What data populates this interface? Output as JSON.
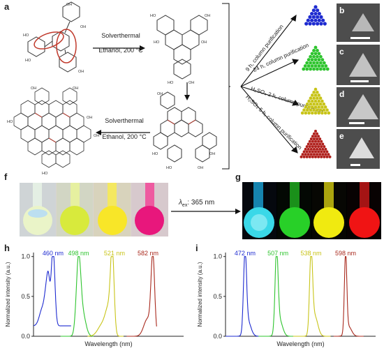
{
  "panel_labels": {
    "a": "a",
    "b": "b",
    "c": "c",
    "d": "d",
    "e": "e",
    "f": "f",
    "g": "g",
    "h": "h",
    "i": "i"
  },
  "reaction": {
    "step1": {
      "line1": "Solverthermal",
      "line2": "Ethanol, 200 °C"
    },
    "step2": {
      "line1": "Solverthermal",
      "line2": "Ethanol, 200 °C"
    },
    "conditions": [
      {
        "text": "9 h, column purification",
        "color": "#2a2ad6"
      },
      {
        "text": "24 h, column purification",
        "color": "#22c422"
      },
      {
        "text": "H₂SO₄ 2 h, column purification",
        "color": "#d8d820"
      },
      {
        "text": "H₂SO₄ 5 h, column purification",
        "color": "#e02020"
      }
    ],
    "oh_label": "OH",
    "ho_label": "HO"
  },
  "excitation": {
    "symbol": "λ",
    "subscript": "ex",
    "value": ": 365 nm"
  },
  "colors": {
    "blue": "#1e2bd0",
    "green": "#2ec42e",
    "yellow": "#c8c418",
    "red": "#b0201c"
  },
  "chart_data": [
    {
      "type": "line",
      "panel": "h",
      "xlabel": "Wavelength (nm)",
      "ylabel": "Normalized intensity (a.u.)",
      "ylim": [
        0,
        1.05
      ],
      "yticks": [
        0.0,
        0.5,
        1.0
      ],
      "ytick_labels": [
        "0.0",
        "0.5",
        "1.0"
      ],
      "series": [
        {
          "name": "460 nm",
          "color": "#1e2bd0",
          "peak": 460
        },
        {
          "name": "498 nm",
          "color": "#2ec42e",
          "peak": 498
        },
        {
          "name": "521 nm",
          "color": "#c8c418",
          "peak": 521
        },
        {
          "name": "582 nm",
          "color": "#a8281c",
          "peak": 582
        }
      ]
    },
    {
      "type": "line",
      "panel": "i",
      "xlabel": "Wavelength (nm)",
      "ylabel": "Normalized intensity (a.u.)",
      "ylim": [
        0,
        1.05
      ],
      "yticks": [
        0.0,
        0.5,
        1.0
      ],
      "ytick_labels": [
        "0.0",
        "0.5",
        "1.0"
      ],
      "series": [
        {
          "name": "472 nm",
          "color": "#1e2bd0",
          "peak": 472
        },
        {
          "name": "507 nm",
          "color": "#2ec42e",
          "peak": 507
        },
        {
          "name": "538 nm",
          "color": "#c8c418",
          "peak": 538
        },
        {
          "name": "598 nm",
          "color": "#a8281c",
          "peak": 598
        }
      ]
    }
  ]
}
